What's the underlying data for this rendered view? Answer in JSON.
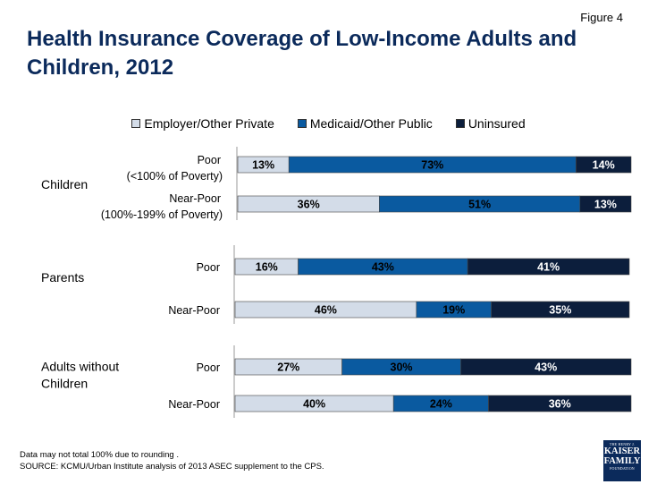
{
  "figure_label": "Figure 4",
  "title_line1": "Health Insurance Coverage of Low-Income Adults and",
  "title_line2": "Children, 2012",
  "logo": {
    "line1": "THE HENRY J.",
    "line2": "KAISER",
    "line3": "FAMILY",
    "line4": "FOUNDATION"
  },
  "footer": {
    "note": "Data may not total 100% due to rounding .",
    "source": "SOURCE: KCMU/Urban Institute analysis of 2013 ASEC supplement to the CPS."
  },
  "chart_data": {
    "type": "bar",
    "stacked": true,
    "orientation": "horizontal",
    "title": "Health Insurance Coverage of Low-Income Adults and Children, 2012",
    "legend_position": "top-center",
    "series": [
      {
        "name": "Employer/Other Private",
        "color": "#d3dce8"
      },
      {
        "name": "Medicaid/Other Public",
        "color": "#0a5aa0"
      },
      {
        "name": "Uninsured",
        "color": "#0c1e3c"
      }
    ],
    "groups": [
      {
        "name_lines": [
          "Children"
        ],
        "bars": [
          {
            "label_lines": [
              "Poor",
              "(<100% of Poverty)"
            ],
            "values": [
              13,
              73,
              14
            ]
          },
          {
            "label_lines": [
              "Near-Poor",
              "(100%-199% of Poverty)"
            ],
            "values": [
              36,
              51,
              13
            ]
          }
        ]
      },
      {
        "name_lines": [
          "Parents"
        ],
        "bars": [
          {
            "label_lines": [
              "Poor"
            ],
            "values": [
              16,
              43,
              41
            ]
          },
          {
            "label_lines": [
              "Near-Poor"
            ],
            "values": [
              46,
              19,
              35
            ]
          }
        ]
      },
      {
        "name_lines": [
          "Adults without",
          "Children"
        ],
        "bars": [
          {
            "label_lines": [
              "Poor"
            ],
            "values": [
              27,
              30,
              43
            ]
          },
          {
            "label_lines": [
              "Near-Poor"
            ],
            "values": [
              40,
              24,
              36
            ]
          }
        ]
      }
    ]
  }
}
